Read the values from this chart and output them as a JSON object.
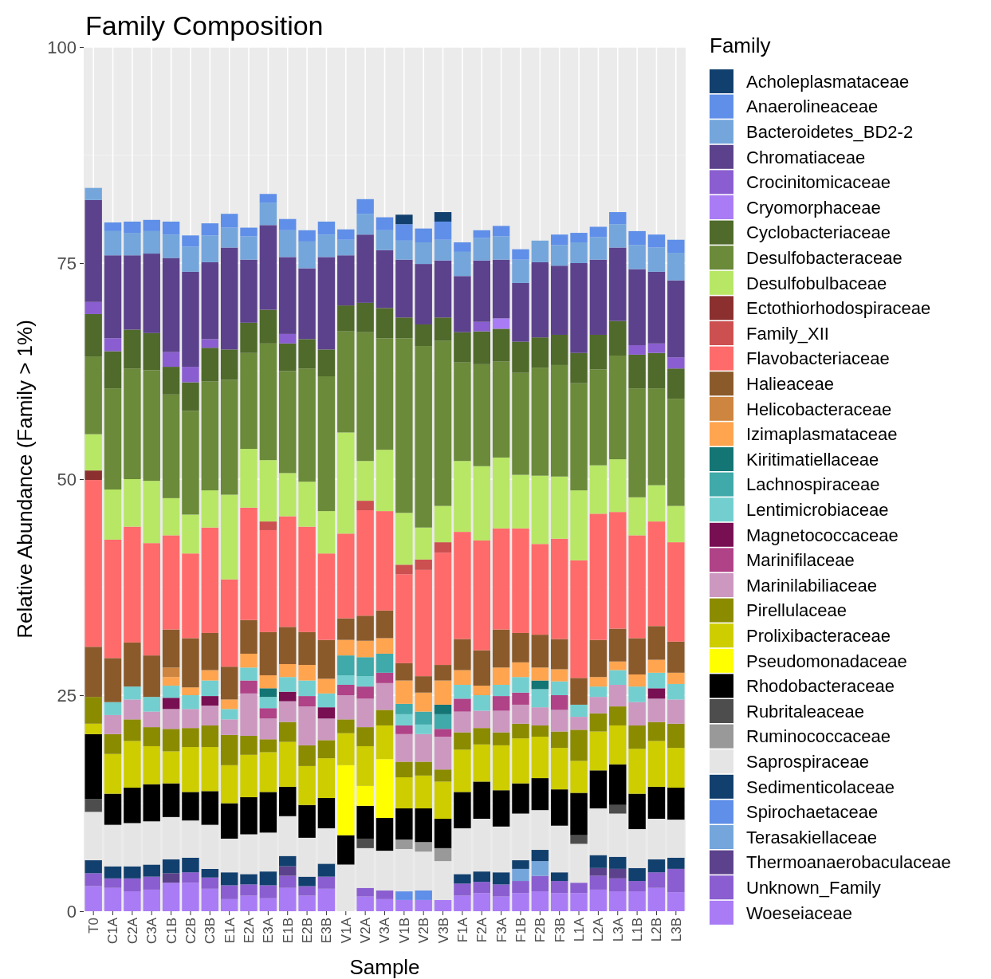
{
  "chart_data": {
    "type": "bar",
    "stacked": true,
    "title": "Family Composition",
    "xlabel": "Sample",
    "ylabel": "Relative Abundance (Family > 1%)",
    "legend_title": "Family",
    "legend": "right",
    "grid": true,
    "ylim": [
      0,
      100
    ],
    "yticks": [
      0,
      25,
      50,
      75,
      100
    ],
    "categories": [
      "T0",
      "C1A",
      "C2A",
      "C3A",
      "C1B",
      "C2B",
      "C3B",
      "E1A",
      "E2A",
      "E3A",
      "E1B",
      "E2B",
      "E3B",
      "V1A",
      "V2A",
      "V3A",
      "V1B",
      "V2B",
      "V3B",
      "F1A",
      "F2A",
      "F3A",
      "F1B",
      "F2B",
      "F3B",
      "L1A",
      "L2A",
      "L3A",
      "L1B",
      "L2B",
      "L3B"
    ],
    "series": [
      {
        "name": "Woeseiaceae",
        "color": "#a97cf5",
        "values": [
          2.9,
          2.7,
          2.3,
          2.5,
          3.3,
          3.3,
          2.6,
          1.4,
          1.8,
          1.5,
          2.7,
          1.8,
          2.6,
          null,
          1.7,
          1.4,
          1.3,
          1.3,
          1.3,
          1.8,
          2.1,
          1.7,
          2.1,
          2.3,
          2.1,
          2.1,
          2.5,
          2.3,
          2.3,
          2.7,
          2.2
        ]
      },
      {
        "name": "Unknown_Family",
        "color": "#8a5ed0",
        "values": [
          1.5,
          1.1,
          1.5,
          1.5,
          null,
          1.2,
          1.3,
          1.6,
          1.3,
          1.5,
          1.4,
          1.1,
          1.4,
          null,
          1.0,
          1.0,
          null,
          null,
          null,
          1.4,
          1.3,
          1.4,
          1.4,
          1.8,
          1.4,
          1.2,
          1.6,
          1.5,
          1.2,
          1.8,
          2.7
        ]
      },
      {
        "name": "Thermoanaerobaculaceae",
        "color": "#5c428c",
        "values": [
          null,
          null,
          null,
          null,
          1.1,
          null,
          null,
          null,
          null,
          null,
          1.1,
          null,
          null,
          null,
          null,
          null,
          null,
          null,
          null,
          null,
          null,
          null,
          null,
          null,
          null,
          null,
          0.9,
          1.1,
          null,
          null,
          null
        ]
      },
      {
        "name": "Terasakiellaceae",
        "color": "#74a6dc",
        "values": [
          null,
          null,
          null,
          null,
          null,
          null,
          null,
          null,
          null,
          null,
          null,
          null,
          null,
          null,
          null,
          null,
          null,
          null,
          null,
          null,
          null,
          null,
          1.4,
          1.7,
          null,
          null,
          null,
          null,
          null,
          null,
          null
        ]
      },
      {
        "name": "Spirochaetaceae",
        "color": "#5f8fe8",
        "values": [
          null,
          null,
          null,
          null,
          null,
          null,
          null,
          null,
          null,
          null,
          null,
          null,
          null,
          null,
          null,
          null,
          1.0,
          1.1,
          null,
          null,
          null,
          null,
          null,
          null,
          null,
          null,
          null,
          null,
          null,
          null,
          null
        ]
      },
      {
        "name": "Sedimenticolaceae",
        "color": "#12406e",
        "values": [
          1.5,
          1.4,
          1.4,
          1.4,
          1.6,
          1.7,
          1.0,
          1.5,
          1.2,
          1.6,
          1.2,
          1.1,
          1.5,
          null,
          null,
          null,
          null,
          null,
          null,
          1.1,
          1.2,
          1.4,
          1.0,
          1.3,
          1.0,
          null,
          1.5,
          1.4,
          1.5,
          1.5,
          1.3
        ]
      },
      {
        "name": "Saprospiraceae",
        "color": "#e5e5e5",
        "values": [
          5.6,
          4.8,
          5.0,
          5.0,
          4.9,
          4.3,
          5.1,
          3.9,
          4.6,
          4.5,
          4.6,
          4.5,
          4.1,
          5.4,
          4.6,
          4.6,
          4.9,
          4.5,
          4.5,
          5.3,
          6.1,
          5.3,
          5.4,
          4.6,
          5.4,
          4.5,
          5.4,
          5.0,
          4.5,
          4.7,
          4.4
        ]
      },
      {
        "name": "Ruminococcaceae",
        "color": "#999999",
        "values": [
          null,
          null,
          null,
          null,
          null,
          null,
          null,
          null,
          null,
          null,
          null,
          null,
          null,
          null,
          null,
          null,
          1.1,
          1.1,
          1.5,
          null,
          null,
          null,
          null,
          null,
          null,
          null,
          null,
          null,
          null,
          null,
          null
        ]
      },
      {
        "name": "Rubritaleaceae",
        "color": "#4d4d4d",
        "values": [
          1.5,
          null,
          null,
          null,
          null,
          null,
          null,
          null,
          null,
          null,
          null,
          null,
          null,
          null,
          1.1,
          null,
          null,
          null,
          null,
          null,
          null,
          null,
          null,
          null,
          null,
          1.0,
          null,
          1.0,
          null,
          null,
          null
        ]
      },
      {
        "name": "Rhodobacteraceae",
        "color": "#000000",
        "values": [
          7.5,
          3.6,
          4.1,
          4.3,
          3.9,
          3.3,
          3.9,
          4.1,
          4.3,
          4.7,
          3.4,
          3.8,
          3.5,
          3.4,
          3.8,
          3.8,
          3.6,
          3.9,
          3.4,
          4.2,
          4.3,
          4.2,
          3.5,
          3.7,
          4.2,
          4.9,
          4.4,
          4.7,
          4.1,
          3.7,
          3.7
        ]
      },
      {
        "name": "Pseudomonadaceae",
        "color": "#ffff00",
        "values": [
          null,
          null,
          null,
          null,
          null,
          null,
          null,
          null,
          null,
          null,
          null,
          null,
          null,
          8.1,
          2.3,
          6.8,
          null,
          null,
          null,
          null,
          null,
          null,
          null,
          null,
          null,
          null,
          null,
          null,
          null,
          null,
          null
        ]
      },
      {
        "name": "Prolixibacteraceae",
        "color": "#cdcd00",
        "values": [
          1.2,
          4.6,
          5.4,
          4.4,
          3.7,
          5.2,
          5.1,
          4.4,
          4.9,
          4.6,
          5.2,
          4.5,
          4.6,
          3.7,
          4.6,
          3.9,
          3.6,
          3.8,
          4.3,
          4.9,
          4.3,
          5.2,
          5.2,
          4.8,
          4.8,
          3.7,
          4.5,
          4.5,
          5.2,
          5.3,
          4.6
        ]
      },
      {
        "name": "Pirellulaceae",
        "color": "#8b8b00",
        "values": [
          3.1,
          2.3,
          2.5,
          2.2,
          2.6,
          2.2,
          2.5,
          3.5,
          2.2,
          1.5,
          2.3,
          2.4,
          2.1,
          1.6,
          2.2,
          1.8,
          1.8,
          1.6,
          1.4,
          2.0,
          1.9,
          1.5,
          1.7,
          1.3,
          1.9,
          3.6,
          2.1,
          2.2,
          2.7,
          2.2,
          2.8
        ]
      },
      {
        "name": "Marinilabiliaceae",
        "color": "#cc98c0",
        "values": [
          null,
          2.2,
          2.3,
          1.8,
          2.3,
          2.2,
          2.3,
          1.8,
          4.9,
          2.4,
          2.4,
          4.5,
          2.5,
          2.8,
          3.3,
          3.1,
          3.2,
          3.2,
          3.8,
          2.4,
          2.0,
          2.5,
          2.2,
          2.1,
          2.5,
          1.5,
          1.9,
          2.5,
          2.7,
          2.7,
          2.8
        ]
      },
      {
        "name": "Marinifilaceae",
        "color": "#b04287",
        "values": [
          null,
          null,
          null,
          null,
          null,
          null,
          null,
          null,
          1.5,
          1.2,
          null,
          1.2,
          null,
          1.2,
          1.4,
          1.2,
          1.0,
          null,
          0.9,
          1.5,
          null,
          1.7,
          1.4,
          null,
          1.7,
          null,
          null,
          null,
          null,
          null,
          null
        ]
      },
      {
        "name": "Magnetococcaceae",
        "color": "#780f52",
        "values": [
          null,
          null,
          null,
          null,
          1.3,
          null,
          1.1,
          null,
          null,
          null,
          1.1,
          null,
          1.3,
          null,
          null,
          null,
          null,
          null,
          null,
          null,
          null,
          null,
          null,
          null,
          null,
          null,
          null,
          null,
          null,
          1.2,
          null
        ]
      },
      {
        "name": "Lentimicrobiaceae",
        "color": "#73cfcf",
        "values": [
          null,
          1.5,
          1.5,
          1.7,
          1.4,
          1.6,
          1.8,
          1.2,
          1.5,
          1.3,
          1.7,
          1.8,
          1.6,
          1.1,
          1.2,
          null,
          1.3,
          1.1,
          null,
          1.6,
          1.8,
          1.3,
          1.8,
          2.1,
          1.6,
          1.4,
          1.2,
          1.7,
          1.8,
          1.8,
          1.8
        ]
      },
      {
        "name": "Lachnospiraceae",
        "color": "#40a9a9",
        "values": [
          null,
          null,
          null,
          null,
          null,
          null,
          null,
          null,
          null,
          null,
          null,
          null,
          null,
          2.3,
          2.2,
          2.2,
          1.2,
          1.5,
          1.7,
          null,
          null,
          null,
          null,
          null,
          null,
          null,
          null,
          null,
          null,
          null,
          null
        ]
      },
      {
        "name": "Kiritimatiellaceae",
        "color": "#137574",
        "values": [
          null,
          null,
          null,
          null,
          null,
          null,
          null,
          null,
          null,
          1.0,
          null,
          null,
          null,
          null,
          null,
          null,
          null,
          null,
          1.1,
          null,
          null,
          null,
          null,
          1.0,
          null,
          null,
          null,
          null,
          null,
          null,
          null
        ]
      },
      {
        "name": "Izimaplasmataceae",
        "color": "#ffa54f",
        "values": [
          null,
          null,
          null,
          null,
          1.0,
          0.9,
          1.2,
          1.1,
          1.6,
          1.5,
          1.5,
          1.8,
          1.7,
          1.8,
          1.9,
          1.8,
          2.7,
          2.2,
          2.8,
          1.7,
          1.1,
          2.0,
          1.7,
          1.5,
          1.4,
          null,
          1.1,
          1.0,
          1.4,
          1.5,
          1.3
        ]
      },
      {
        "name": "Helicobacteraceae",
        "color": "#cd853f",
        "values": [
          null,
          null,
          null,
          null,
          1.1,
          null,
          null,
          null,
          null,
          null,
          null,
          null,
          null,
          null,
          null,
          null,
          null,
          null,
          null,
          null,
          null,
          null,
          null,
          null,
          null,
          null,
          null,
          null,
          null,
          null,
          null
        ]
      },
      {
        "name": "Halieaceae",
        "color": "#8b5a2b",
        "values": [
          5.8,
          5.1,
          5.1,
          4.8,
          4.4,
          5.7,
          4.3,
          3.8,
          3.9,
          5.0,
          4.3,
          3.8,
          4.5,
          2.5,
          2.9,
          3.2,
          2.0,
          1.9,
          1.8,
          3.6,
          4.1,
          4.4,
          3.4,
          3.8,
          3.5,
          3.1,
          4.3,
          3.8,
          4.2,
          3.9,
          3.6
        ]
      },
      {
        "name": "Flavobacteriaceae",
        "color": "#ff6b6b",
        "values": [
          19.3,
          13.7,
          13.4,
          13.0,
          10.9,
          9.8,
          12.2,
          10.1,
          13.0,
          11.8,
          12.8,
          12.2,
          10.0,
          9.8,
          12.2,
          11.5,
          10.3,
          12.3,
          13.0,
          12.4,
          12.7,
          11.7,
          12.1,
          10.5,
          11.6,
          13.6,
          14.6,
          13.5,
          11.9,
          12.1,
          11.5
        ]
      },
      {
        "name": "Family_XII",
        "color": "#cc5050",
        "values": [
          null,
          null,
          null,
          null,
          null,
          null,
          null,
          null,
          null,
          1.0,
          null,
          null,
          null,
          null,
          1.1,
          null,
          1.1,
          1.2,
          1.2,
          null,
          null,
          null,
          null,
          null,
          null,
          null,
          null,
          null,
          null,
          null,
          null
        ]
      },
      {
        "name": "Ectothiorhodospiraceae",
        "color": "#8b2f2f",
        "values": [
          1.1,
          null,
          null,
          null,
          null,
          null,
          null,
          null,
          null,
          null,
          null,
          null,
          null,
          null,
          null,
          null,
          null,
          null,
          null,
          null,
          null,
          null,
          null,
          null,
          null,
          null,
          null,
          null,
          null,
          null,
          null
        ]
      },
      {
        "name": "Desulfobulbaceae",
        "color": "#b8e765",
        "values": [
          4.2,
          5.8,
          5.5,
          7.2,
          4.3,
          4.5,
          4.3,
          9.8,
          6.8,
          7.1,
          5.0,
          5.2,
          4.9,
          11.7,
          4.6,
          7.1,
          6.0,
          3.7,
          4.2,
          8.2,
          8.6,
          8.2,
          6.2,
          7.9,
          7.2,
          8.1,
          5.6,
          6.1,
          4.4,
          4.2,
          4.2
        ]
      },
      {
        "name": "Desulfobacteraceae",
        "color": "#6b8a3a",
        "values": [
          9.0,
          11.7,
          12.8,
          12.8,
          12.0,
          12.0,
          12.6,
          13.3,
          11.1,
          13.5,
          11.8,
          13.1,
          15.6,
          11.7,
          14.9,
          12.9,
          20.2,
          21.0,
          19.1,
          11.4,
          11.8,
          11.1,
          11.8,
          12.5,
          12.9,
          12.4,
          11.1,
          12.0,
          12.6,
          11.2,
          12.4
        ]
      },
      {
        "name": "Cyclobacteriaceae",
        "color": "#4f6a2a",
        "values": [
          4.9,
          4.3,
          4.5,
          4.3,
          3.2,
          3.3,
          3.9,
          3.5,
          3.5,
          3.9,
          3.2,
          3.4,
          3.1,
          3.0,
          3.4,
          3.5,
          2.4,
          2.5,
          2.7,
          3.5,
          3.8,
          3.8,
          3.6,
          3.5,
          3.5,
          3.5,
          4.0,
          4.0,
          3.9,
          4.1,
          3.5
        ]
      },
      {
        "name": "Cryomorphaceae",
        "color": "#a97cf5",
        "values": [
          null,
          null,
          null,
          null,
          null,
          null,
          null,
          null,
          null,
          null,
          null,
          null,
          null,
          null,
          null,
          null,
          null,
          null,
          null,
          null,
          null,
          1.2,
          null,
          null,
          null,
          null,
          null,
          null,
          null,
          null,
          null
        ]
      },
      {
        "name": "Crocinitomicaceae",
        "color": "#8a5ed0",
        "values": [
          1.4,
          1.5,
          null,
          null,
          1.7,
          1.8,
          1.0,
          null,
          null,
          null,
          1.1,
          null,
          null,
          null,
          null,
          null,
          null,
          null,
          null,
          null,
          1.1,
          null,
          null,
          null,
          null,
          null,
          null,
          null,
          1.1,
          1.1,
          1.3
        ]
      },
      {
        "name": "Chromatiaceae",
        "color": "#5c428c",
        "values": [
          11.8,
          9.6,
          8.6,
          9.2,
          10.9,
          11.0,
          8.9,
          11.8,
          7.3,
          9.8,
          8.9,
          8.2,
          10.7,
          5.8,
          7.9,
          6.7,
          6.7,
          7.0,
          6.6,
          6.5,
          7.1,
          6.8,
          6.8,
          8.7,
          8.0,
          10.4,
          8.7,
          8.5,
          8.8,
          8.3,
          8.9
        ]
      },
      {
        "name": "Bacteroidetes_BD2-2",
        "color": "#74a6dc",
        "values": [
          1.4,
          2.8,
          2.6,
          2.6,
          2.7,
          2.9,
          3.1,
          2.3,
          2.7,
          2.6,
          3.1,
          3.1,
          2.6,
          1.8,
          2.4,
          2.3,
          2.2,
          2.5,
          2.4,
          2.8,
          2.6,
          2.7,
          2.7,
          2.5,
          2.4,
          2.4,
          2.6,
          2.7,
          2.8,
          2.8,
          3.2
        ]
      },
      {
        "name": "Anaerolineaceae",
        "color": "#5f8fe8",
        "values": [
          null,
          1.0,
          1.3,
          1.3,
          1.5,
          1.3,
          1.4,
          1.6,
          1.0,
          1.0,
          1.3,
          1.3,
          1.5,
          1.2,
          1.7,
          1.5,
          1.9,
          1.6,
          2.1,
          1.1,
          0.9,
          1.2,
          1.2,
          null,
          1.2,
          1.1,
          1.2,
          1.4,
          1.6,
          1.5,
          1.5
        ]
      },
      {
        "name": "Acholeplasmataceae",
        "color": "#12406e",
        "values": [
          null,
          null,
          null,
          null,
          null,
          null,
          null,
          null,
          null,
          null,
          null,
          null,
          null,
          null,
          null,
          null,
          1.1,
          null,
          1.1,
          null,
          null,
          null,
          null,
          null,
          null,
          null,
          null,
          null,
          null,
          null,
          null
        ]
      }
    ]
  }
}
